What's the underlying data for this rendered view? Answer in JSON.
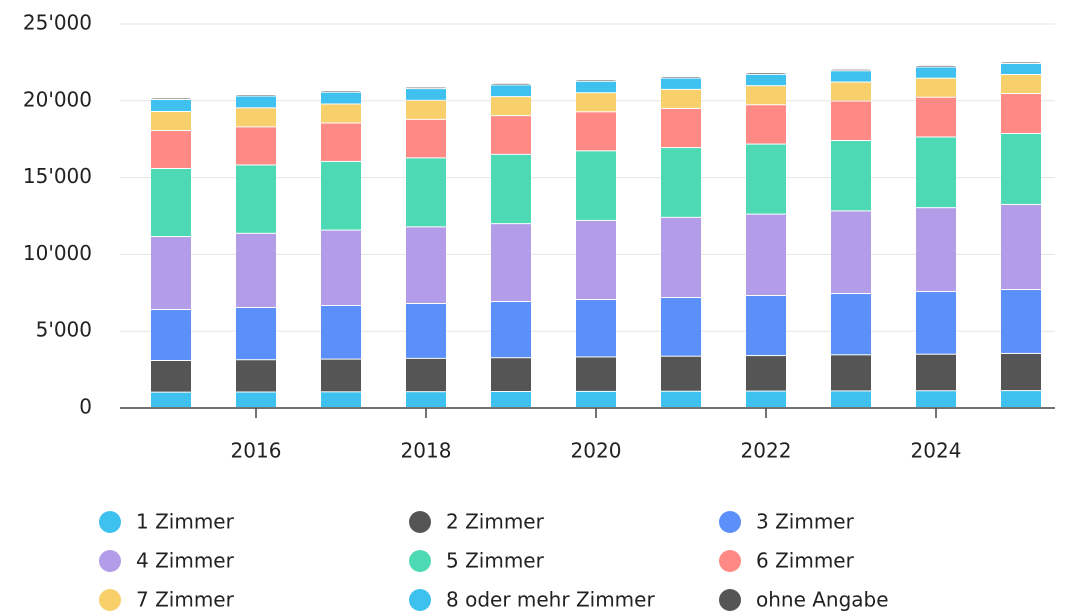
{
  "chart_data": {
    "type": "stacked_bar",
    "x": [
      2015,
      2016,
      2017,
      2018,
      2019,
      2020,
      2021,
      2022,
      2023,
      2024,
      2025
    ],
    "xlim": [
      2014.4,
      2025.4
    ],
    "xticks": [
      2016,
      2018,
      2020,
      2022,
      2024
    ],
    "ylim": [
      0,
      25000
    ],
    "yticks": [
      0,
      {
        "value": 5000,
        "label": "5'000"
      },
      {
        "value": 10000,
        "label": "10'000"
      },
      {
        "value": 15000,
        "label": "15'000"
      },
      {
        "value": 20000,
        "label": "20'000"
      },
      {
        "value": 25000,
        "label": "25'000"
      }
    ],
    "grid": true,
    "legend": "bottom",
    "series": [
      {
        "name": "1 Zimmer",
        "color": "#3ec1ef",
        "values": [
          1000,
          1010,
          1020,
          1030,
          1040,
          1050,
          1060,
          1070,
          1080,
          1090,
          1100
        ]
      },
      {
        "name": "2 Zimmer",
        "color": "#555555",
        "values": [
          2060,
          2100,
          2130,
          2170,
          2200,
          2240,
          2280,
          2310,
          2350,
          2380,
          2420
        ]
      },
      {
        "name": "3 Zimmer",
        "color": "#5b8ff9",
        "values": [
          3320,
          3400,
          3490,
          3570,
          3660,
          3740,
          3820,
          3910,
          3990,
          4080,
          4160
        ]
      },
      {
        "name": "4 Zimmer",
        "color": "#b39ce8",
        "values": [
          4750,
          4830,
          4910,
          4990,
          5070,
          5150,
          5220,
          5300,
          5380,
          5460,
          5540
        ]
      },
      {
        "name": "5 Zimmer",
        "color": "#4dd9b4",
        "values": [
          4430,
          4450,
          4470,
          4490,
          4510,
          4530,
          4540,
          4560,
          4580,
          4600,
          4620
        ]
      },
      {
        "name": "6 Zimmer",
        "color": "#ff8a85",
        "values": [
          2470,
          2480,
          2500,
          2510,
          2520,
          2540,
          2550,
          2560,
          2570,
          2590,
          2600
        ]
      },
      {
        "name": "7 Zimmer",
        "color": "#f7cf6b",
        "values": [
          1240,
          1240,
          1240,
          1240,
          1240,
          1240,
          1240,
          1240,
          1240,
          1240,
          1240
        ]
      },
      {
        "name": "8 oder mehr Zimmer",
        "color": "#3ec1ef",
        "values": [
          780,
          770,
          770,
          760,
          760,
          750,
          740,
          740,
          730,
          730,
          720
        ]
      },
      {
        "name": "ohne Angabe",
        "color": "#555555",
        "values": [
          100,
          100,
          100,
          100,
          100,
          100,
          100,
          100,
          100,
          100,
          100
        ]
      }
    ]
  }
}
